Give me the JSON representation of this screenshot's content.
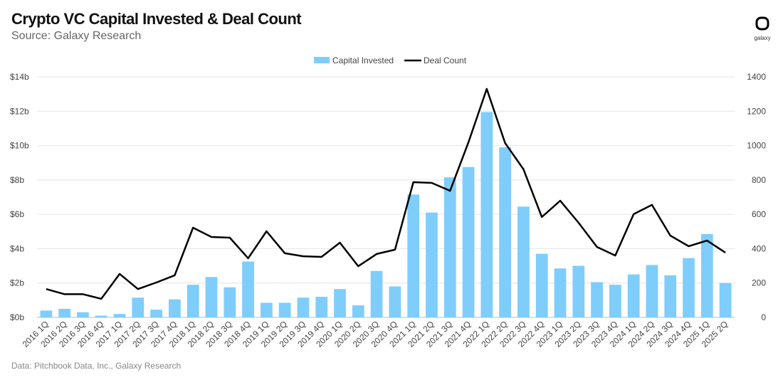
{
  "header": {
    "title": "Crypto VC Capital Invested & Deal Count",
    "subtitle": "Source: Galaxy Research",
    "logo_text": "galaxy"
  },
  "footer": {
    "note": "Data: Pitchbook Data, Inc., Galaxy Research"
  },
  "chart_data": {
    "type": "bar+line",
    "title": "Crypto VC Capital Invested & Deal Count",
    "legend_position": "top-center",
    "grid": true,
    "categories": [
      "2016 1Q",
      "2016 2Q",
      "2016 3Q",
      "2016 4Q",
      "2017 1Q",
      "2017 2Q",
      "2017 3Q",
      "2017 4Q",
      "2018 1Q",
      "2018 2Q",
      "2018 3Q",
      "2018 4Q",
      "2019 1Q",
      "2019 2Q",
      "2019 3Q",
      "2019 4Q",
      "2020 1Q",
      "2020 2Q",
      "2020 3Q",
      "2020 4Q",
      "2021 1Q",
      "2021 2Q",
      "2021 3Q",
      "2021 4Q",
      "2022 1Q",
      "2022 2Q",
      "2022 3Q",
      "2022 4Q",
      "2023 1Q",
      "2023 2Q",
      "2023 3Q",
      "2023 4Q",
      "2024 1Q",
      "2024 2Q",
      "2024 3Q",
      "2024 4Q",
      "2025 1Q",
      "2025 2Q"
    ],
    "left_axis": {
      "ylim": [
        0,
        14
      ],
      "ticks": [
        "$0b",
        "$2b",
        "$4b",
        "$6b",
        "$8b",
        "$10b",
        "$12b",
        "$14b"
      ]
    },
    "right_axis": {
      "ylim": [
        0,
        1400
      ],
      "ticks": [
        "0",
        "200",
        "400",
        "600",
        "800",
        "1000",
        "1200",
        "1400"
      ]
    },
    "series": [
      {
        "name": "Capital Invested",
        "type": "bar",
        "axis": "left",
        "color": "#7fcdfb",
        "values": [
          0.4,
          0.5,
          0.3,
          0.1,
          0.2,
          1.15,
          0.45,
          1.05,
          1.9,
          2.35,
          1.75,
          3.25,
          0.85,
          0.85,
          1.15,
          1.2,
          1.65,
          0.7,
          2.7,
          1.8,
          7.15,
          6.1,
          8.15,
          8.75,
          11.95,
          9.9,
          6.45,
          3.7,
          2.85,
          3.0,
          2.05,
          1.9,
          2.5,
          3.05,
          2.45,
          3.45,
          4.85,
          2.0
        ]
      },
      {
        "name": "Deal Count",
        "type": "line",
        "axis": "right",
        "color": "#000000",
        "values": [
          165,
          135,
          135,
          108,
          253,
          165,
          203,
          245,
          522,
          468,
          464,
          344,
          501,
          373,
          356,
          352,
          435,
          298,
          369,
          394,
          787,
          783,
          737,
          1019,
          1330,
          1015,
          862,
          584,
          679,
          551,
          410,
          360,
          601,
          655,
          476,
          414,
          447,
          377
        ]
      }
    ]
  }
}
